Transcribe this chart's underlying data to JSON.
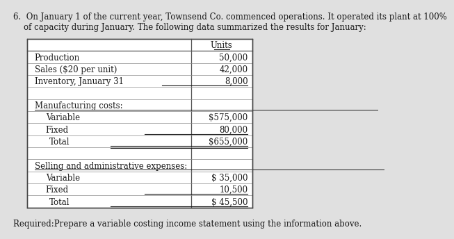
{
  "background_color": "#e0e0e0",
  "header_line1": "6.  On January 1 of the current year, Townsend Co. commenced operations. It operated its plant at 100%",
  "header_line2": "    of capacity during January. The following data summarized the results for January:",
  "table_bg": "#ffffff",
  "col_header": "Units",
  "rows": [
    {
      "label": "Production",
      "value": "50,000",
      "label_indent": 0.01,
      "underline_val": false,
      "double_underline": false,
      "label_underline": false,
      "spacer": false
    },
    {
      "label": "Sales ($20 per unit)",
      "value": "42,000",
      "label_indent": 0.01,
      "underline_val": false,
      "double_underline": false,
      "label_underline": false,
      "spacer": false
    },
    {
      "label": "Inventory, January 31",
      "value": "8,000",
      "label_indent": 0.01,
      "underline_val": true,
      "double_underline": false,
      "label_underline": false,
      "spacer": false
    },
    {
      "label": "",
      "value": "",
      "label_indent": 0.01,
      "underline_val": false,
      "double_underline": false,
      "label_underline": false,
      "spacer": true
    },
    {
      "label": "Manufacturing costs:",
      "value": "",
      "label_indent": 0.01,
      "underline_val": false,
      "double_underline": false,
      "label_underline": true,
      "spacer": false
    },
    {
      "label": "Variable",
      "value": "$575,000",
      "label_indent": 0.04,
      "underline_val": false,
      "double_underline": false,
      "label_underline": false,
      "spacer": false
    },
    {
      "label": "Fixed",
      "value": "80,000",
      "label_indent": 0.04,
      "underline_val": true,
      "double_underline": false,
      "label_underline": false,
      "spacer": false
    },
    {
      "label": "Total",
      "value": "$655,000",
      "label_indent": 0.05,
      "underline_val": true,
      "double_underline": true,
      "label_underline": false,
      "spacer": false
    },
    {
      "label": "",
      "value": "",
      "label_indent": 0.01,
      "underline_val": false,
      "double_underline": false,
      "label_underline": false,
      "spacer": true
    },
    {
      "label": "Selling and administrative expenses:",
      "value": "",
      "label_indent": 0.01,
      "underline_val": false,
      "double_underline": false,
      "label_underline": true,
      "spacer": false
    },
    {
      "label": "Variable",
      "value": "$ 35,000",
      "label_indent": 0.04,
      "underline_val": false,
      "double_underline": false,
      "label_underline": false,
      "spacer": false
    },
    {
      "label": "Fixed",
      "value": "10,500",
      "label_indent": 0.04,
      "underline_val": true,
      "double_underline": false,
      "label_underline": false,
      "spacer": false
    },
    {
      "label": "Total",
      "value": "$ 45,500",
      "label_indent": 0.05,
      "underline_val": true,
      "double_underline": true,
      "label_underline": false,
      "spacer": false
    }
  ],
  "footer_text": "Required:Prepare a variable costing income statement using the information above.",
  "text_color": "#1a1a1a",
  "header_fontsize": 8.5,
  "table_fontsize": 8.5,
  "footer_fontsize": 8.5
}
